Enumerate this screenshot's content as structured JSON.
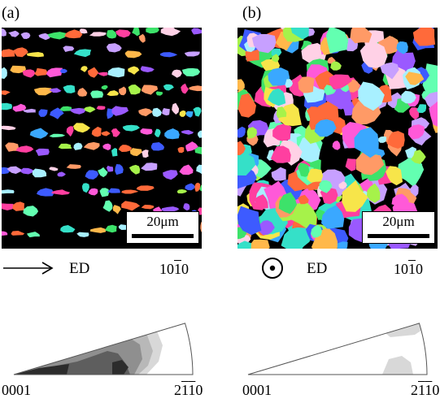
{
  "panel_a": {
    "label": "(a)",
    "scale_label": "20μm",
    "direction_label": "ED",
    "pole_figure": {
      "corner_left": "0001",
      "corner_right_main": "2",
      "corner_right_bar1": "1",
      "corner_right_bar2": "1",
      "corner_right_end": "0",
      "corner_top_main": "10",
      "corner_top_bar": "1",
      "corner_top_end": "0"
    }
  },
  "panel_b": {
    "label": "(b)",
    "scale_label": "20μm",
    "direction_label": "ED",
    "pole_figure": {
      "corner_left": "0001",
      "corner_right_main": "2",
      "corner_right_bar1": "1",
      "corner_right_bar2": "1",
      "corner_right_end": "0",
      "corner_top_main": "10",
      "corner_top_bar": "1",
      "corner_top_end": "0"
    }
  },
  "colors": {
    "grain_palette": [
      "#ff3fa0",
      "#ff6a3a",
      "#ffb84a",
      "#f7e54a",
      "#a6f24a",
      "#3de26a",
      "#35e0c8",
      "#3aa8ff",
      "#3d5bff",
      "#9a59ff",
      "#ff59d8",
      "#c7a0ff",
      "#a8f0ff",
      "#ff9a66",
      "#63ffb1",
      "#ffd1e6"
    ],
    "contour_levels": [
      "#d8d8d8",
      "#b8b8b8",
      "#8f8f8f",
      "#5e5e5e",
      "#2c2c2c"
    ]
  }
}
